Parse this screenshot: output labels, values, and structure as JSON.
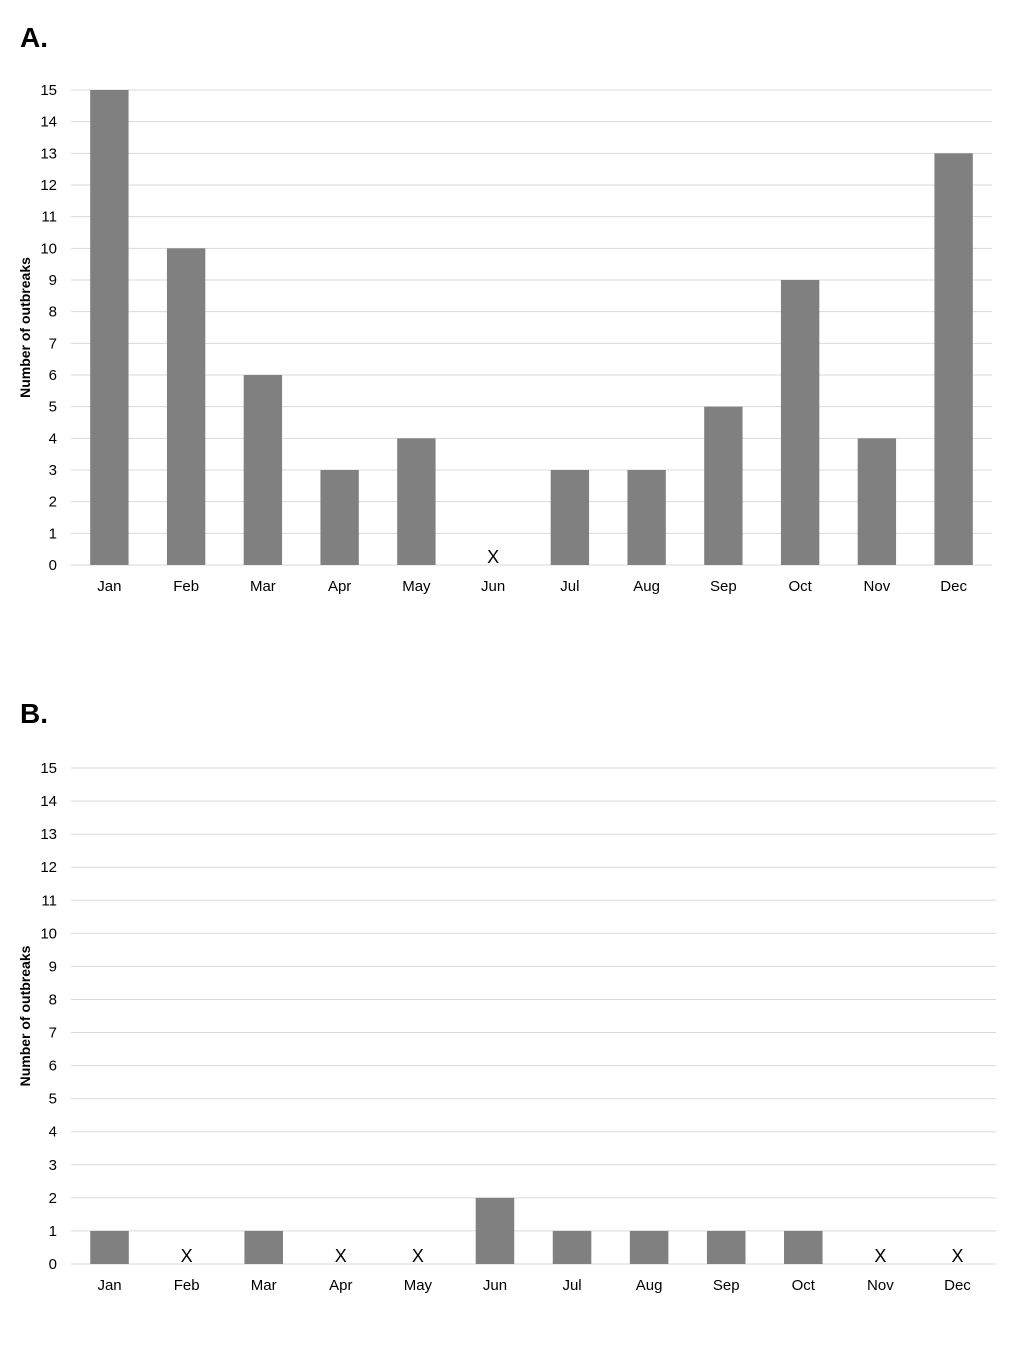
{
  "chart_data": [
    {
      "panel": "A.",
      "type": "bar",
      "categories": [
        "Jan",
        "Feb",
        "Mar",
        "Apr",
        "May",
        "Jun",
        "Jul",
        "Aug",
        "Sep",
        "Oct",
        "Nov",
        "Dec"
      ],
      "values": [
        15,
        10,
        6,
        3,
        4,
        0,
        3,
        3,
        5,
        9,
        4,
        13
      ],
      "zero_marker": "X",
      "ylabel": "Number of outbreaks",
      "ylim": [
        0,
        15
      ],
      "yticks": [
        0,
        1,
        2,
        3,
        4,
        5,
        6,
        7,
        8,
        9,
        10,
        11,
        12,
        13,
        14,
        15
      ],
      "grid": true,
      "bar_color": "#808080",
      "grid_color": "#d9d9d9"
    },
    {
      "panel": "B.",
      "type": "bar",
      "categories": [
        "Jan",
        "Feb",
        "Mar",
        "Apr",
        "May",
        "Jun",
        "Jul",
        "Aug",
        "Sep",
        "Oct",
        "Nov",
        "Dec"
      ],
      "values": [
        1,
        0,
        1,
        0,
        0,
        2,
        1,
        1,
        1,
        1,
        0,
        0
      ],
      "zero_marker": "X",
      "ylabel": "Number of outbreaks",
      "ylim": [
        0,
        15
      ],
      "yticks": [
        0,
        1,
        2,
        3,
        4,
        5,
        6,
        7,
        8,
        9,
        10,
        11,
        12,
        13,
        14,
        15
      ],
      "grid": true,
      "bar_color": "#808080",
      "grid_color": "#d9d9d9"
    }
  ]
}
